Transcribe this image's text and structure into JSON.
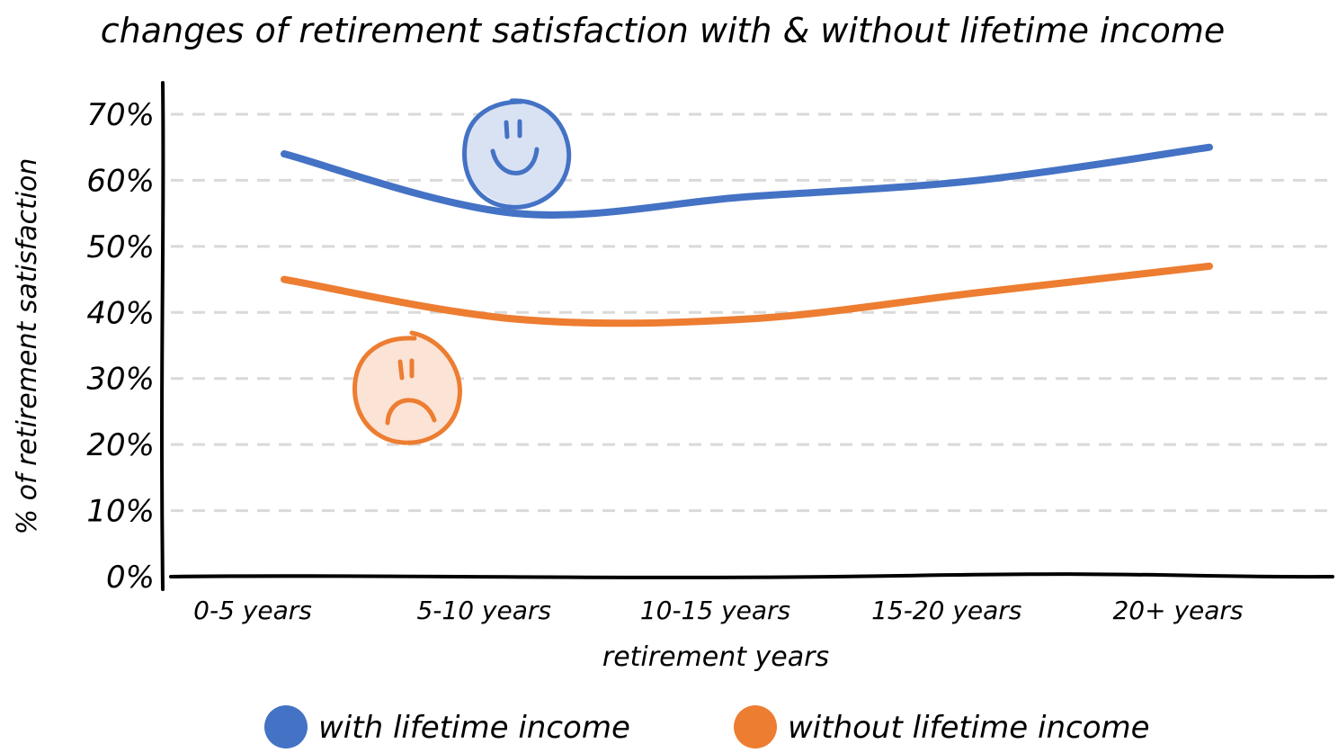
{
  "chart_data": {
    "type": "line",
    "title": "changes of retirement satisfaction with & without lifetime income",
    "xlabel": "retirement years",
    "ylabel": "% of retirement satisfaction",
    "categories": [
      "0-5 years",
      "5-10 years",
      "10-15 years",
      "15-20 years",
      "20+ years"
    ],
    "yticks": [
      "0%",
      "10%",
      "20%",
      "30%",
      "40%",
      "50%",
      "60%",
      "70%"
    ],
    "ylim": [
      0,
      70
    ],
    "grid": true,
    "smooth": true,
    "legend_position": "bottom",
    "series": [
      {
        "name": "with lifetime income",
        "color": "#4472C4",
        "values": [
          64,
          55,
          57.5,
          60,
          65
        ]
      },
      {
        "name": "without lifetime income",
        "color": "#ED7D31",
        "values": [
          45,
          39,
          39,
          43,
          47
        ]
      }
    ],
    "annotations": [
      {
        "type": "happy-face",
        "color": "#4472C4",
        "fill": "#D9E2F3",
        "near_series": "with lifetime income"
      },
      {
        "type": "sad-face",
        "color": "#ED7D31",
        "fill": "#FBE3D6",
        "near_series": "without lifetime income"
      }
    ]
  }
}
